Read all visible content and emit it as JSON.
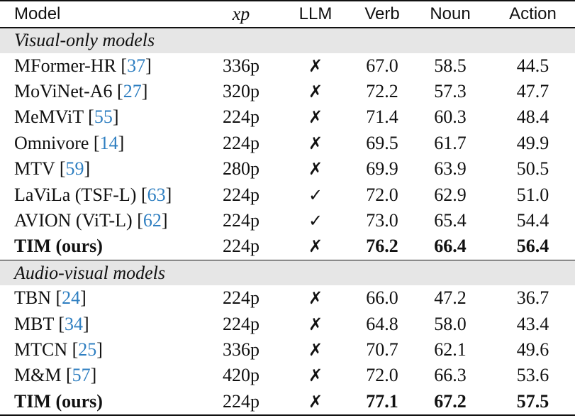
{
  "header": {
    "model": "Model",
    "xp": "xp",
    "llm": "LLM",
    "verb": "Verb",
    "noun": "Noun",
    "action": "Action"
  },
  "sections": [
    {
      "title": "Visual-only models",
      "rows": [
        {
          "model": "MFormer-HR",
          "cite": "37",
          "xp": "336p",
          "llm": "✗",
          "verb": "67.0",
          "noun": "58.5",
          "action": "44.5"
        },
        {
          "model": "MoViNet-A6",
          "cite": "27",
          "xp": "320p",
          "llm": "✗",
          "verb": "72.2",
          "noun": "57.3",
          "action": "47.7"
        },
        {
          "model": "MeMViT",
          "cite": "55",
          "xp": "224p",
          "llm": "✗",
          "verb": "71.4",
          "noun": "60.3",
          "action": "48.4"
        },
        {
          "model": "Omnivore",
          "cite": "14",
          "xp": "224p",
          "llm": "✗",
          "verb": "69.5",
          "noun": "61.7",
          "action": "49.9"
        },
        {
          "model": "MTV",
          "cite": "59",
          "xp": "280p",
          "llm": "✗",
          "verb": "69.9",
          "noun": "63.9",
          "action": "50.5"
        },
        {
          "model": "LaViLa (TSF-L)",
          "cite": "63",
          "xp": "224p",
          "llm": "✓",
          "verb": "72.0",
          "noun": "62.9",
          "action": "51.0"
        },
        {
          "model": "AVION (ViT-L)",
          "cite": "62",
          "xp": "224p",
          "llm": "✓",
          "verb": "73.0",
          "noun": "65.4",
          "action": "54.4"
        }
      ],
      "ours": {
        "model": "TIM (ours)",
        "xp": "224p",
        "llm": "✗",
        "verb": "76.2",
        "noun": "66.4",
        "action": "56.4"
      }
    },
    {
      "title": "Audio-visual models",
      "rows": [
        {
          "model": "TBN",
          "cite": "24",
          "xp": "224p",
          "llm": "✗",
          "verb": "66.0",
          "noun": "47.2",
          "action": "36.7"
        },
        {
          "model": "MBT",
          "cite": "34",
          "xp": "224p",
          "llm": "✗",
          "verb": "64.8",
          "noun": "58.0",
          "action": "43.4"
        },
        {
          "model": "MTCN",
          "cite": "25",
          "xp": "336p",
          "llm": "✗",
          "verb": "70.7",
          "noun": "62.1",
          "action": "49.6"
        },
        {
          "model": "M&M",
          "cite": "57",
          "xp": "420p",
          "llm": "✗",
          "verb": "72.0",
          "noun": "66.3",
          "action": "53.6"
        }
      ],
      "ours": {
        "model": "TIM (ours)",
        "xp": "224p",
        "llm": "✗",
        "verb": "77.1",
        "noun": "67.2",
        "action": "57.5"
      }
    }
  ],
  "colors": {
    "citation": "#2f7fc1",
    "section_bg": "#e6e6e6"
  }
}
